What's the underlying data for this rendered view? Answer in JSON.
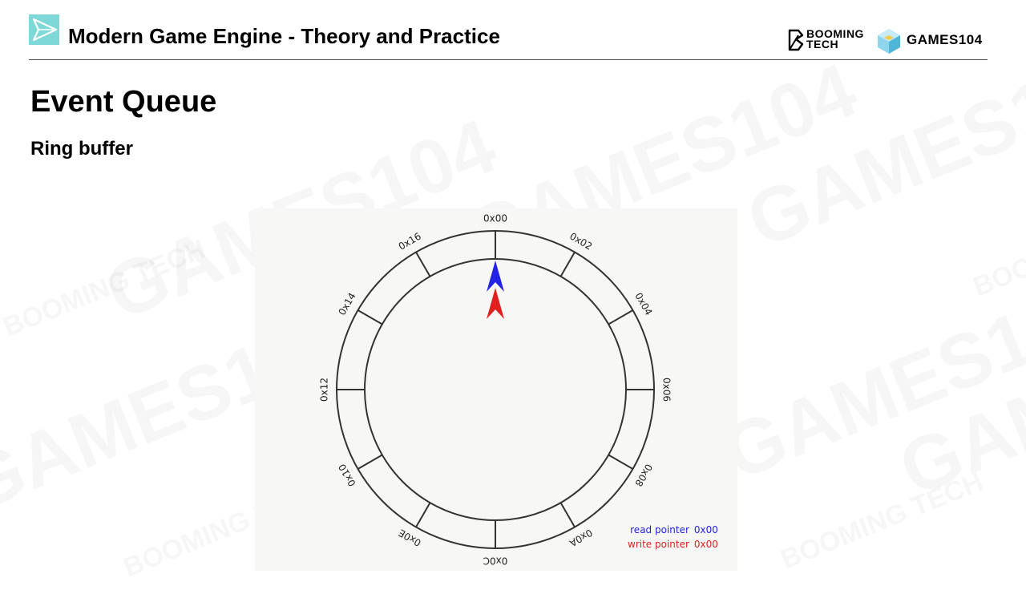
{
  "header": {
    "course_title": "Modern Game Engine - Theory and Practice",
    "brand_left": {
      "line1": "BOOMING",
      "line2": "TECH"
    },
    "brand_right": "GAMES104",
    "accent_color": "#7fd8d8"
  },
  "slide": {
    "title": "Event Queue",
    "subtitle": "Ring buffer"
  },
  "ring_buffer": {
    "slots": [
      "0x00",
      "0x02",
      "0x04",
      "0x06",
      "0x08",
      "0x0A",
      "0x0C",
      "0x0E",
      "0x10",
      "0x12",
      "0x14",
      "0x16"
    ],
    "read_pointer": {
      "label": "read pointer",
      "value": "0x00",
      "color": "#2323e6"
    },
    "write_pointer": {
      "label": "write pointer",
      "value": "0x00",
      "color": "#e01f1f"
    }
  },
  "icons": [
    "paper-plane-logo-icon",
    "booming-tech-logo-icon",
    "games104-cube-logo-icon"
  ]
}
